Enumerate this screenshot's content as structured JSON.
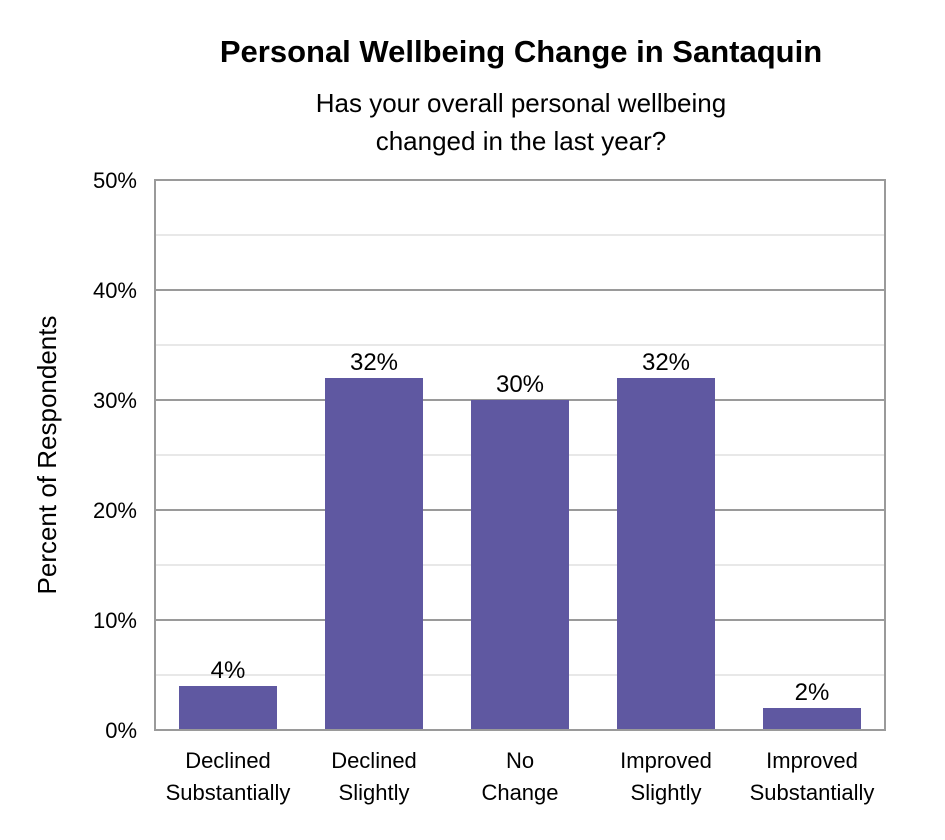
{
  "chart_data": {
    "type": "bar",
    "title": "Personal Wellbeing Change in Santaquin",
    "subtitle_lines": [
      "Has your overall personal wellbeing",
      "changed in the last year?"
    ],
    "xlabel": "",
    "ylabel": "Percent of Respondents",
    "categories": [
      [
        "Declined",
        "Substantially"
      ],
      [
        "Declined",
        "Slightly"
      ],
      [
        "No",
        "Change"
      ],
      [
        "Improved",
        "Slightly"
      ],
      [
        "Improved",
        "Substantially"
      ]
    ],
    "values": [
      4,
      32,
      30,
      32,
      2
    ],
    "data_labels": [
      "4%",
      "32%",
      "30%",
      "32%",
      "2%"
    ],
    "ylim": [
      0,
      50
    ],
    "y_ticks": [
      0,
      10,
      20,
      30,
      40,
      50
    ],
    "y_tick_labels": [
      "0%",
      "10%",
      "20%",
      "30%",
      "40%",
      "50%"
    ],
    "grid": true,
    "legend": "none",
    "colors": {
      "bar": "#5f58a1",
      "major_grid": "#9a9a9a",
      "minor_grid": "#d0d0d0",
      "border": "#9a9a9a"
    }
  }
}
